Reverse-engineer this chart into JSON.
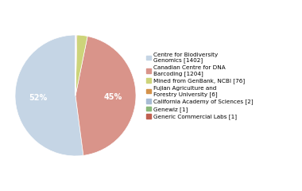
{
  "labels": [
    "Centre for Biodiversity\nGenomics [1402]",
    "Canadian Centre for DNA\nBarcoding [1204]",
    "Mined from GenBank, NCBI [76]",
    "Fujian Agriculture and\nForestry University [6]",
    "California Academy of Sciences [2]",
    "Genewiz [1]",
    "Generic Commercial Labs [1]"
  ],
  "values": [
    1402,
    1204,
    76,
    6,
    2,
    1,
    1
  ],
  "colors": [
    "#c5d5e5",
    "#d9948a",
    "#cdd47a",
    "#d4924a",
    "#a8bcd4",
    "#8ab87a",
    "#c06050"
  ],
  "legend_labels": [
    "Centre for Biodiversity\nGenomics [1402]",
    "Canadian Centre for DNA\nBarcoding [1204]",
    "Mined from GenBank, NCBI [76]",
    "Fujian Agriculture and\nForestry University [6]",
    "California Academy of Sciences [2]",
    "Genewiz [1]",
    "Generic Commercial Labs [1]"
  ],
  "startangle": 90,
  "background_color": "#ffffff",
  "pct_threshold": 3.0
}
